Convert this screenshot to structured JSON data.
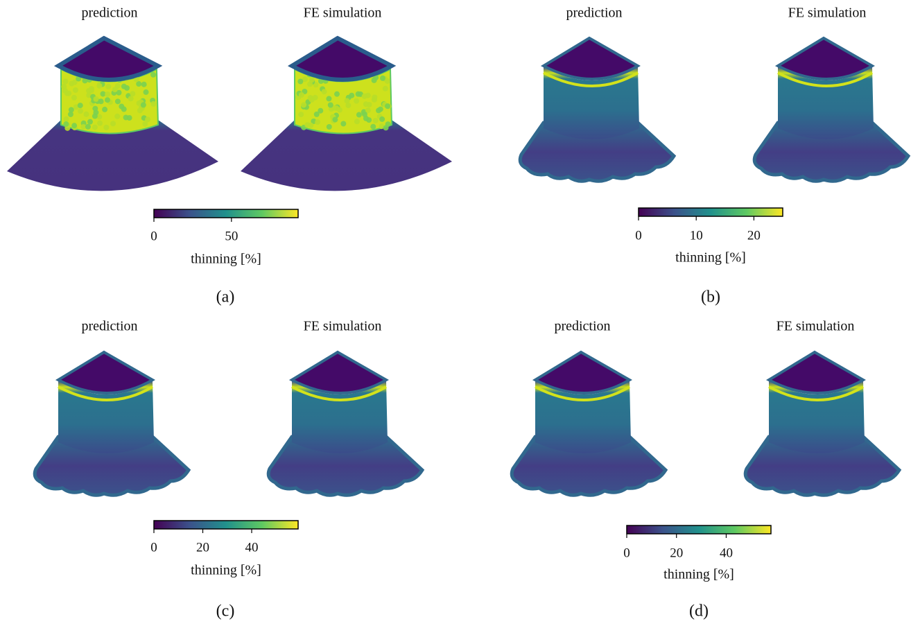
{
  "panels": [
    {
      "caption": "(a)",
      "titles": [
        "prediction",
        "FE simulation"
      ],
      "colorbar": {
        "label": "thinning [%]",
        "lim": [
          0,
          93
        ],
        "ticks": [
          0,
          50
        ]
      }
    },
    {
      "caption": "(b)",
      "titles": [
        "prediction",
        "FE simulation"
      ],
      "colorbar": {
        "label": "thinning [%]",
        "lim": [
          0,
          25
        ],
        "ticks": [
          0,
          10,
          20
        ]
      }
    },
    {
      "caption": "(c)",
      "titles": [
        "prediction",
        "FE simulation"
      ],
      "colorbar": {
        "label": "thinning [%]",
        "lim": [
          0,
          59
        ],
        "ticks": [
          0,
          20,
          40
        ]
      }
    },
    {
      "caption": "(d)",
      "titles": [
        "prediction",
        "FE simulation"
      ],
      "colorbar": {
        "label": "thinning [%]",
        "lim": [
          0,
          58
        ],
        "ticks": [
          0,
          20,
          40
        ]
      }
    }
  ]
}
